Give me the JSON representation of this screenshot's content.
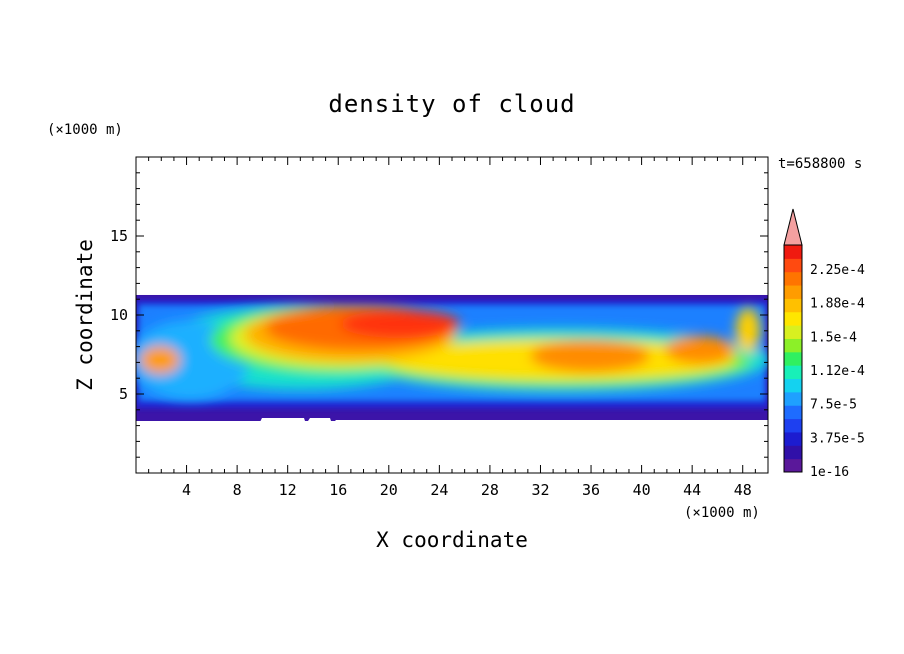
{
  "chart_data": {
    "type": "heatmap",
    "title": "density of cloud",
    "time_label": "t=658800 s",
    "xlabel": "X coordinate",
    "ylabel": "Z coordinate",
    "x_unit": "(×1000 m)",
    "y_unit": "(×1000 m)",
    "xlim": [
      0,
      50
    ],
    "ylim": [
      0,
      20
    ],
    "x_ticks": [
      4,
      8,
      12,
      16,
      20,
      24,
      28,
      32,
      36,
      40,
      44,
      48
    ],
    "y_ticks": [
      5,
      10,
      15
    ],
    "cloud_layer": {
      "z_bottom": 3.3,
      "z_top": 11.2
    },
    "colorbar": {
      "labels": [
        "2.25e-4",
        "1.88e-4",
        "1.5e-4",
        "1.12e-4",
        "7.5e-5",
        "3.75e-5",
        "1e-16"
      ],
      "colors": [
        "#5a189a",
        "#3010a8",
        "#1c1cd0",
        "#1e40f0",
        "#1e6cff",
        "#1fa0ff",
        "#14d2f0",
        "#18f0b8",
        "#30f060",
        "#8cf028",
        "#d8f020",
        "#ffe600",
        "#ffc000",
        "#ff9c00",
        "#ff7400",
        "#ff4a10",
        "#f01a10"
      ],
      "extend_color": "#f4a0a0"
    }
  }
}
